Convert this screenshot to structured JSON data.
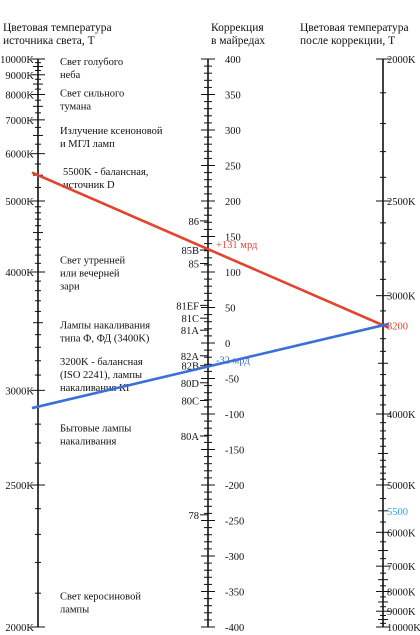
{
  "headers": {
    "left": [
      "Цветовая температура",
      "источника света, Т"
    ],
    "middle": [
      "Коррекция",
      "в майредах"
    ],
    "right": [
      "Цветовая температура",
      "после коррекции, Т"
    ]
  },
  "left_scale": {
    "labels": [
      {
        "k": 10000,
        "text": "10000K"
      },
      {
        "k": 9000,
        "text": "9000K"
      },
      {
        "k": 8000,
        "text": "8000K"
      },
      {
        "k": 7000,
        "text": "7000K"
      },
      {
        "k": 6000,
        "text": "6000K"
      },
      {
        "k": 5000,
        "text": "5000K"
      },
      {
        "k": 4000,
        "text": "4000K"
      },
      {
        "k": 3000,
        "text": "3000K"
      },
      {
        "k": 2500,
        "text": "2500K"
      },
      {
        "k": 2000,
        "text": "2000K"
      }
    ]
  },
  "middle_scale": {
    "labels": [
      400,
      350,
      300,
      250,
      200,
      150,
      100,
      50,
      0,
      -50,
      -100,
      -150,
      -200,
      -250,
      -300,
      -350,
      -400
    ],
    "filters": [
      {
        "name": "86",
        "mired": 172
      },
      {
        "name": "85B",
        "mired": 131
      },
      {
        "name": "85",
        "mired": 112
      },
      {
        "name": "81EF",
        "mired": 53
      },
      {
        "name": "81C",
        "mired": 35
      },
      {
        "name": "81A",
        "mired": 18
      },
      {
        "name": "82A",
        "mired": -18
      },
      {
        "name": "82B",
        "mired": -32
      },
      {
        "name": "80D",
        "mired": -56
      },
      {
        "name": "80C",
        "mired": -81
      },
      {
        "name": "80A",
        "mired": -131
      },
      {
        "name": "78",
        "mired": -242
      }
    ]
  },
  "right_scale": {
    "labels": [
      {
        "k": 2000,
        "text": "2000K"
      },
      {
        "k": 2500,
        "text": "2500K"
      },
      {
        "k": 3000,
        "text": "3000K"
      },
      {
        "k": 4000,
        "text": "4000K"
      },
      {
        "k": 5000,
        "text": "5000K"
      },
      {
        "k": 6000,
        "text": "6000K"
      },
      {
        "k": 7000,
        "text": "7000K"
      },
      {
        "k": 8000,
        "text": "8000K"
      },
      {
        "k": 9000,
        "text": "9000K"
      },
      {
        "k": 10000,
        "text": "10000K"
      }
    ]
  },
  "notes": [
    {
      "k": 9600,
      "lines": [
        "Свет голубого",
        "неба"
      ]
    },
    {
      "k": 7900,
      "lines": [
        "Свет сильного",
        "тумана"
      ]
    },
    {
      "k": 6550,
      "lines": [
        "Излучение ксеноновой",
        "и МГЛ ламп"
      ]
    },
    {
      "k": 5500,
      "lines": [
        "5500K - балансная,",
        "источник D"
      ],
      "indent": true
    },
    {
      "k": 4100,
      "lines": [
        "Свет утренней",
        "или вечерней",
        "зари"
      ]
    },
    {
      "k": 3450,
      "lines": [
        "Лампы накаливания",
        "типа Ф, ФД (3400K)"
      ]
    },
    {
      "k": 3170,
      "lines": [
        "3200K - балансная",
        "(ISO 2241), лампы",
        "накаливания КГ"
      ]
    },
    {
      "k": 2760,
      "lines": [
        "Бытовые лампы",
        "накаливания"
      ]
    },
    {
      "k": 2080,
      "lines": [
        "Свет керосиновой",
        "лампы"
      ]
    }
  ],
  "examples": [
    {
      "from_k": 5500,
      "mired": 131,
      "to_k": 3200,
      "label": "+131 мрд",
      "color": "#e4432d"
    },
    {
      "from_k": 2900,
      "mired": -32,
      "to_k": 3200,
      "label": "-32 мрд",
      "color": "#3b6fd9"
    }
  ],
  "highlight_values": [
    {
      "side": "right",
      "k": 3200,
      "text": "3200",
      "color": "#e4432d"
    },
    {
      "side": "right",
      "k": 5500,
      "text": "5500",
      "color": "#2aa8d8"
    }
  ]
}
